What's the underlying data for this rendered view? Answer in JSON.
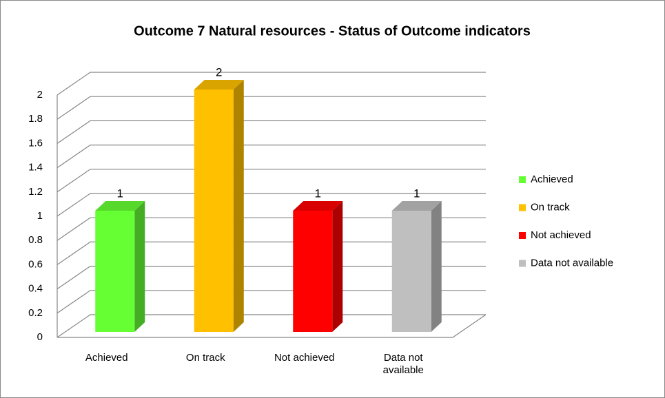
{
  "chart_data": {
    "type": "bar3d",
    "title": "Outcome 7 Natural resources - Status of Outcome indicators",
    "categories": [
      "Achieved",
      "On track",
      "Not achieved",
      "Data not available"
    ],
    "values": [
      1,
      2,
      1,
      1
    ],
    "colors": [
      "#66ff33",
      "#ffc000",
      "#ff0000",
      "#bfbfbf"
    ],
    "ylim": [
      0,
      2
    ],
    "yticks": [
      0,
      0.2,
      0.4,
      0.6,
      0.8,
      1,
      1.2,
      1.4,
      1.6,
      1.8,
      2
    ],
    "grid": true,
    "legend": "right"
  }
}
